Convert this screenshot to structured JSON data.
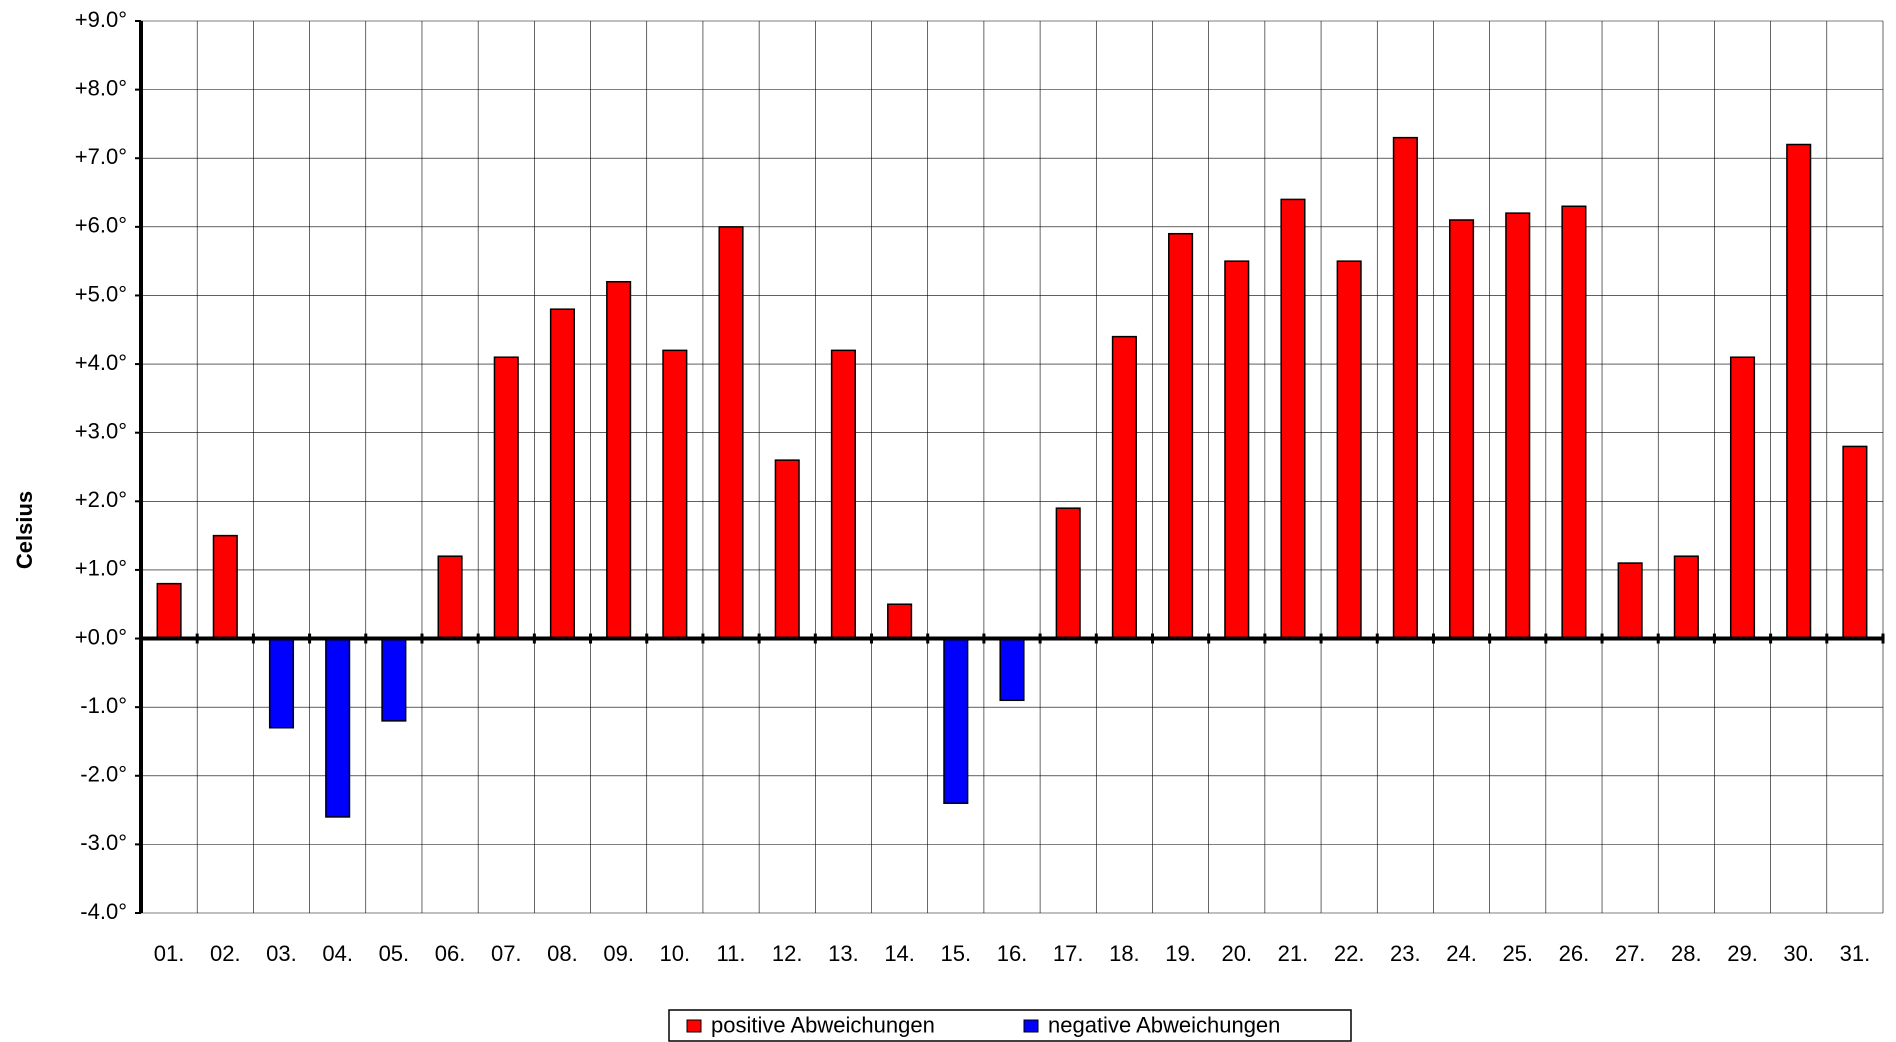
{
  "chart_data": {
    "type": "bar",
    "ylabel": "Celsius",
    "categories": [
      "01.",
      "02.",
      "03.",
      "04.",
      "05.",
      "06.",
      "07.",
      "08.",
      "09.",
      "10.",
      "11.",
      "12.",
      "13.",
      "14.",
      "15.",
      "16.",
      "17.",
      "18.",
      "19.",
      "20.",
      "21.",
      "22.",
      "23.",
      "24.",
      "25.",
      "26.",
      "27.",
      "28.",
      "29.",
      "30.",
      "31."
    ],
    "series": [
      {
        "name": "positive Abweichungen",
        "color": "#ff0000",
        "values": [
          0.8,
          1.5,
          null,
          null,
          null,
          1.2,
          4.1,
          4.8,
          5.2,
          4.2,
          6.0,
          2.6,
          4.2,
          0.5,
          null,
          null,
          1.9,
          4.4,
          5.9,
          5.5,
          6.4,
          5.5,
          7.3,
          6.1,
          6.2,
          6.3,
          1.1,
          1.2,
          4.1,
          7.2,
          2.8
        ]
      },
      {
        "name": "negative Abweichungen",
        "color": "#0000ff",
        "values": [
          null,
          null,
          -1.3,
          -2.6,
          -1.2,
          null,
          null,
          null,
          null,
          null,
          null,
          null,
          null,
          null,
          -2.4,
          -0.9,
          null,
          null,
          null,
          null,
          null,
          null,
          null,
          null,
          null,
          null,
          null,
          null,
          null,
          null,
          null
        ]
      }
    ],
    "ylim": [
      -4,
      9
    ],
    "yticks": [
      {
        "value": -4,
        "label": "-4.0°"
      },
      {
        "value": -3,
        "label": "-3.0°"
      },
      {
        "value": -2,
        "label": "-2.0°"
      },
      {
        "value": -1,
        "label": "-1.0°"
      },
      {
        "value": 0,
        "label": "+0.0°"
      },
      {
        "value": 1,
        "label": "+1.0°"
      },
      {
        "value": 2,
        "label": "+2.0°"
      },
      {
        "value": 3,
        "label": "+3.0°"
      },
      {
        "value": 4,
        "label": "+4.0°"
      },
      {
        "value": 5,
        "label": "+5.0°"
      },
      {
        "value": 6,
        "label": "+6.0°"
      },
      {
        "value": 7,
        "label": "+7.0°"
      },
      {
        "value": 8,
        "label": "+8.0°"
      },
      {
        "value": 9,
        "label": "+9.0°"
      }
    ],
    "grid": true,
    "legend": "bottom"
  }
}
